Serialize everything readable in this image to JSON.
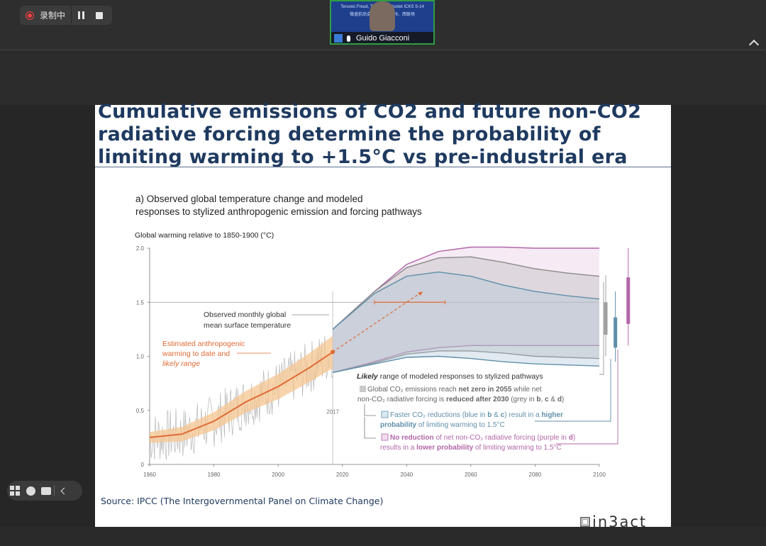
{
  "recording": {
    "label": "录制中"
  },
  "video": {
    "participant": "Guido Giacconi",
    "banner_line1": "Teruvec Freud, Ten  Ulirevy Isotet ICKS S-14",
    "banner_line2": "微遥前后会场…  三、法州、西联场"
  },
  "slide": {
    "title_lines": [
      "Cumulative emissions of CO2 and future non-CO2",
      "radiative forcing determine the probability of",
      "limiting warming to +1.5°C vs pre-industrial era"
    ],
    "source": "Source: IPCC (The Intergovernmental Panel on Climate Change)",
    "logo": "in3act"
  },
  "chart_data": {
    "type": "line",
    "title_lines": [
      "a) Observed global temperature change and modeled",
      "responses to stylized anthropogenic emission and forcing pathways"
    ],
    "ylabel": "Global warming relative to 1850-1900 (°C)",
    "xlim": [
      1960,
      2100
    ],
    "ylim": [
      0,
      2.0
    ],
    "x_ticks": [
      "1960",
      "1980",
      "2000",
      "2020",
      "2040",
      "2060",
      "2080",
      "2100"
    ],
    "y_ticks": [
      "0",
      "0.5",
      "1.0",
      "1.5",
      "2.0"
    ],
    "reference_line": 1.5,
    "marker_year": "2017",
    "annotations": {
      "observed": [
        "Observed monthly global",
        "mean surface temperature"
      ],
      "estimated": [
        "Estimated anthropogenic",
        "warming to date and",
        "likely range"
      ],
      "likely_header_italic": "Likely",
      "likely_header_rest": " range of modeled responses to stylized pathways",
      "grey": {
        "a": "Global CO₂ emissions reach ",
        "b": "net zero in 2055",
        "c": " while net",
        "d": "non-CO₂ radiative forcing is ",
        "e": "reduced after 2030",
        "f": " (grey in ",
        "g": "b",
        "h": ", ",
        "i": "c",
        "j": " & ",
        "k": "d",
        "l": ")"
      },
      "blue": {
        "a": "Faster CO₂ reductions (blue in ",
        "b": "b",
        "c": " & ",
        "d": "c",
        "e": ") result in a ",
        "f": "higher",
        "g": "probability",
        "h": " of limiting warming to 1.5°C"
      },
      "purple": {
        "a": "No reduction",
        "b": " of net non-CO₂ radiative forcing (purple in ",
        "c": "d",
        "d": ")",
        "e": "results in a ",
        "f": "lower probability",
        "g": " of limiting warming to 1.5°C"
      }
    },
    "series": [
      {
        "name": "Estimated anthropogenic warming to date",
        "x": [
          1960,
          1970,
          1980,
          1990,
          2000,
          2010,
          2017
        ],
        "y": [
          0.25,
          0.28,
          0.4,
          0.58,
          0.72,
          0.9,
          1.04
        ]
      }
    ],
    "pathways": {
      "purple": {
        "x": [
          2017,
          2030,
          2040,
          2050,
          2060,
          2070,
          2080,
          2090,
          2100
        ],
        "upper": [
          1.25,
          1.6,
          1.85,
          1.97,
          2.01,
          2.01,
          2.0,
          2.0,
          2.0
        ],
        "lower": [
          0.85,
          0.95,
          1.04,
          1.08,
          1.1,
          1.1,
          1.1,
          1.1,
          1.1
        ]
      },
      "grey": {
        "x": [
          2017,
          2030,
          2040,
          2050,
          2060,
          2070,
          2080,
          2090,
          2100
        ],
        "upper": [
          1.25,
          1.6,
          1.82,
          1.91,
          1.92,
          1.87,
          1.81,
          1.77,
          1.74
        ],
        "lower": [
          0.85,
          0.94,
          1.02,
          1.05,
          1.05,
          1.03,
          1.0,
          0.99,
          0.98
        ]
      },
      "blue": {
        "x": [
          2017,
          2030,
          2040,
          2050,
          2060,
          2070,
          2080,
          2090,
          2100
        ],
        "upper": [
          1.25,
          1.58,
          1.74,
          1.78,
          1.74,
          1.66,
          1.6,
          1.56,
          1.53
        ],
        "lower": [
          0.85,
          0.93,
          0.99,
          1.0,
          0.98,
          0.95,
          0.93,
          0.92,
          0.91
        ]
      }
    },
    "colors": {
      "purple": "#b266a8",
      "grey": "#9a9a9a",
      "blue": "#5f8fa8",
      "orange": "#e06a35",
      "band": "#f6c690"
    }
  }
}
